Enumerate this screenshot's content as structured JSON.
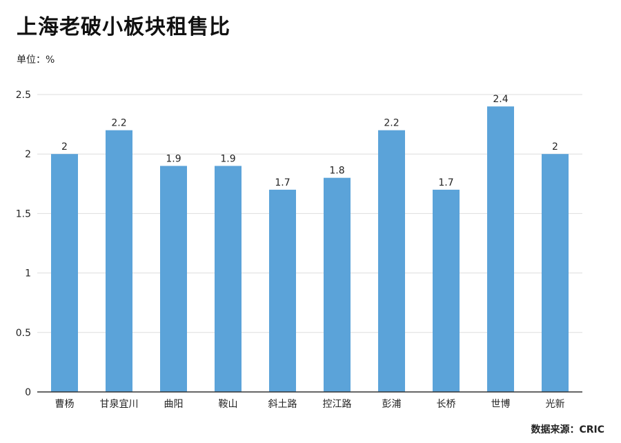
{
  "header": {
    "title": "上海老破小板块租售比",
    "unit": "单位：%"
  },
  "footer": {
    "source": "数据来源：CRIC"
  },
  "colors": {
    "bar": "#5ba3d9",
    "grid": "#dddddd",
    "axis": "#333333"
  },
  "chart_data": {
    "type": "bar",
    "title": "上海老破小板块租售比",
    "ylabel": "单位：%",
    "xlabel": "",
    "categories": [
      "曹杨",
      "甘泉宜川",
      "曲阳",
      "鞍山",
      "斜土路",
      "控江路",
      "彭浦",
      "长桥",
      "世博",
      "光新"
    ],
    "values": [
      2,
      2.2,
      1.9,
      1.9,
      1.7,
      1.8,
      2.2,
      1.7,
      2.4,
      2
    ],
    "data_labels": [
      "2",
      "2.2",
      "1.9",
      "1.9",
      "1.7",
      "1.8",
      "2.2",
      "1.7",
      "2.4",
      "2"
    ],
    "ylim": [
      0,
      2.5
    ],
    "yticks": [
      0,
      0.5,
      1,
      1.5,
      2,
      2.5
    ],
    "ytick_labels": [
      "0",
      "0.5",
      "1",
      "1.5",
      "2",
      "2.5"
    ],
    "grid": true,
    "legend": "none"
  }
}
